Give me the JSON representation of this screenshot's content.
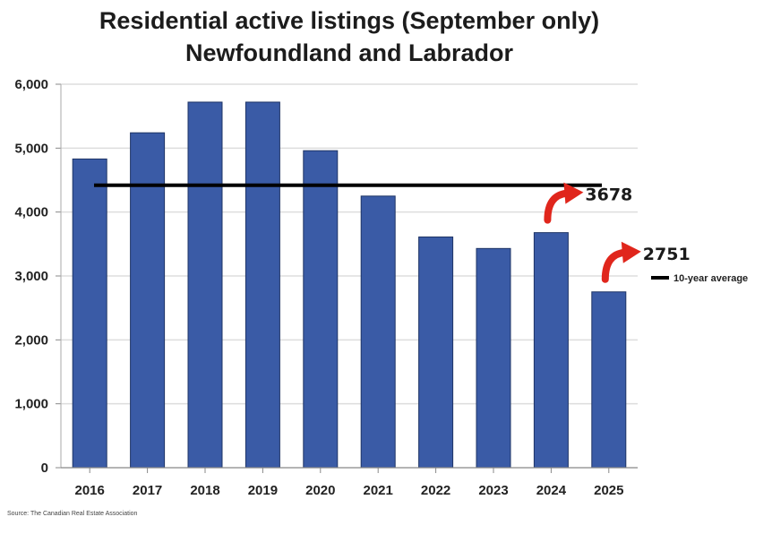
{
  "chart_data": {
    "type": "bar",
    "title": "Residential active listings (September only)",
    "subtitle": "Newfoundland and Labrador",
    "categories": [
      "2016",
      "2017",
      "2018",
      "2019",
      "2020",
      "2021",
      "2022",
      "2023",
      "2024",
      "2025"
    ],
    "values": [
      4830,
      5240,
      5720,
      5720,
      4960,
      4250,
      3610,
      3430,
      3678,
      2751
    ],
    "ylim": [
      0,
      6000
    ],
    "yticks": [
      0,
      1000,
      2000,
      3000,
      4000,
      5000,
      6000
    ],
    "ytick_labels": [
      "0",
      "1,000",
      "2,000",
      "3,000",
      "4,000",
      "5,000",
      "6,000"
    ],
    "grid": true,
    "bar_color": "#3a5ba6",
    "average": {
      "label": "10-year average",
      "value": 4420,
      "color": "#000000"
    },
    "annotations": [
      {
        "category": "2024",
        "text": "3678",
        "arrow_color": "#e0261c"
      },
      {
        "category": "2025",
        "text": "2751",
        "arrow_color": "#e0261c"
      }
    ],
    "legend_position": "right",
    "source": "Source: The Canadian Real Estate Association"
  }
}
